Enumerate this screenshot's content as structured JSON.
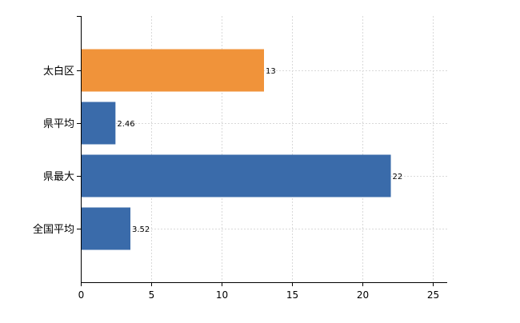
{
  "chart_data": {
    "type": "bar",
    "orientation": "horizontal",
    "categories": [
      "太白区",
      "県平均",
      "県最大",
      "全国平均"
    ],
    "values": [
      13,
      2.46,
      22,
      3.52
    ],
    "data_labels": [
      "13",
      "2.46",
      "22",
      "3.52"
    ],
    "bar_colors": [
      "#F0933A",
      "#3A6BAA",
      "#3A6BAA",
      "#3A6BAA"
    ],
    "xlim": [
      0,
      26
    ],
    "xticks": [
      0,
      5,
      10,
      15,
      20,
      25
    ],
    "title": "",
    "xlabel": "",
    "ylabel": "",
    "grid": true,
    "legend": "none"
  }
}
